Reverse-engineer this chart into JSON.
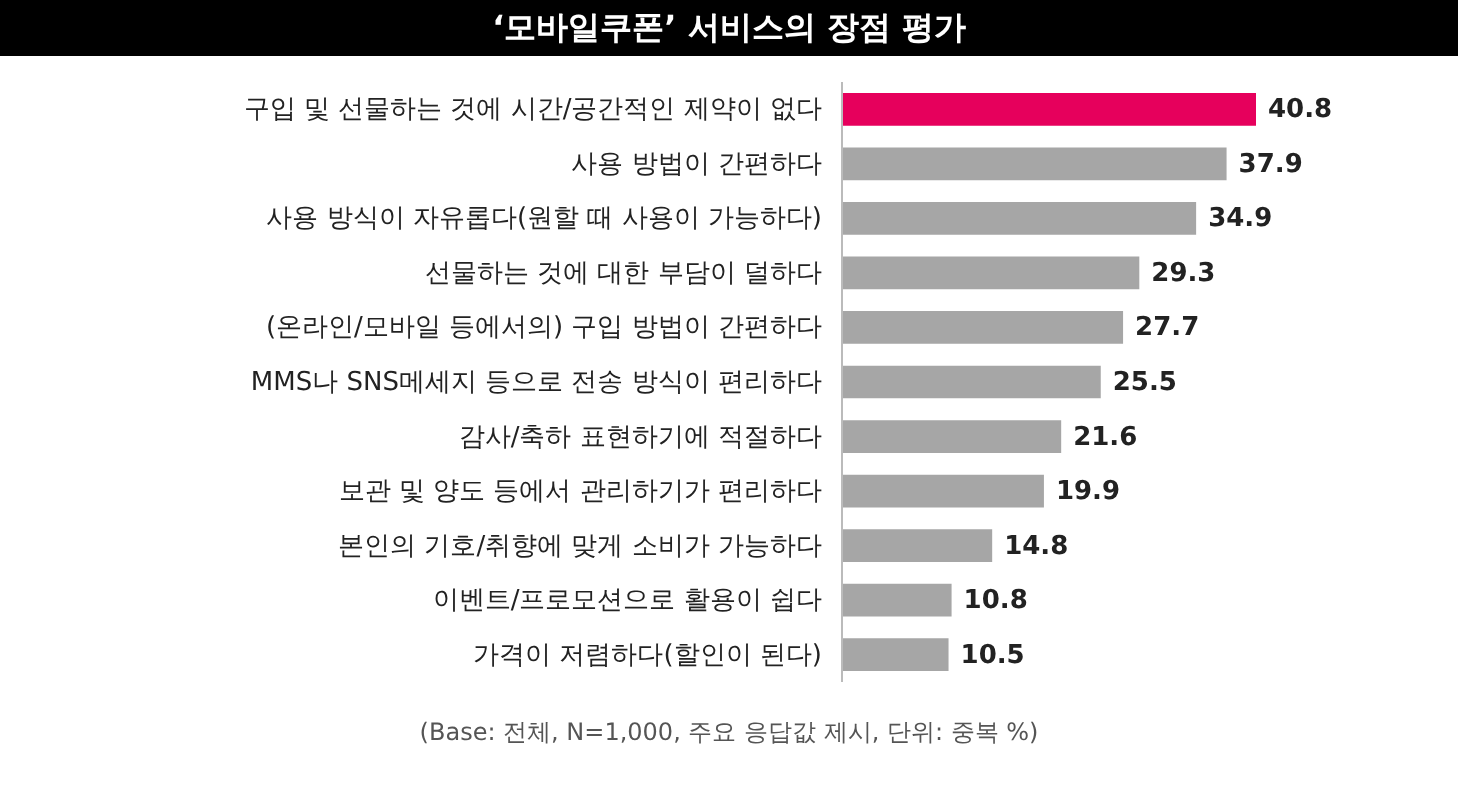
{
  "chart_data": {
    "type": "bar",
    "orientation": "horizontal",
    "title": "‘모바일쿠폰’ 서비스의 장점 평가",
    "categories": [
      "구입 및 선물하는 것에 시간/공간적인 제약이 없다",
      "사용 방법이 간편하다",
      "사용 방식이 자유롭다(원할 때 사용이 가능하다)",
      "선물하는 것에 대한 부담이 덜하다",
      "(온라인/모바일 등에서의) 구입 방법이 간편하다",
      "MMS나 SNS메세지 등으로 전송 방식이 편리하다",
      "감사/축하 표현하기에 적절하다",
      "보관 및 양도 등에서 관리하기가 편리하다",
      "본인의 기호/취향에 맞게 소비가 가능하다",
      "이벤트/프로모션으로 활용이 쉽다",
      "가격이 저렴하다(할인이 된다)"
    ],
    "values": [
      40.8,
      37.9,
      34.9,
      29.3,
      27.7,
      25.5,
      21.6,
      19.9,
      14.8,
      10.8,
      10.5
    ],
    "colors": [
      "#e6005c",
      "#a6a6a6",
      "#a6a6a6",
      "#a6a6a6",
      "#a6a6a6",
      "#a6a6a6",
      "#a6a6a6",
      "#a6a6a6",
      "#a6a6a6",
      "#a6a6a6",
      "#a6a6a6"
    ],
    "data_labels": true,
    "annotations": [
      "(Base: 전체, N=1,000, 주요 응답값 제시, 단위: 중복 %)"
    ]
  }
}
